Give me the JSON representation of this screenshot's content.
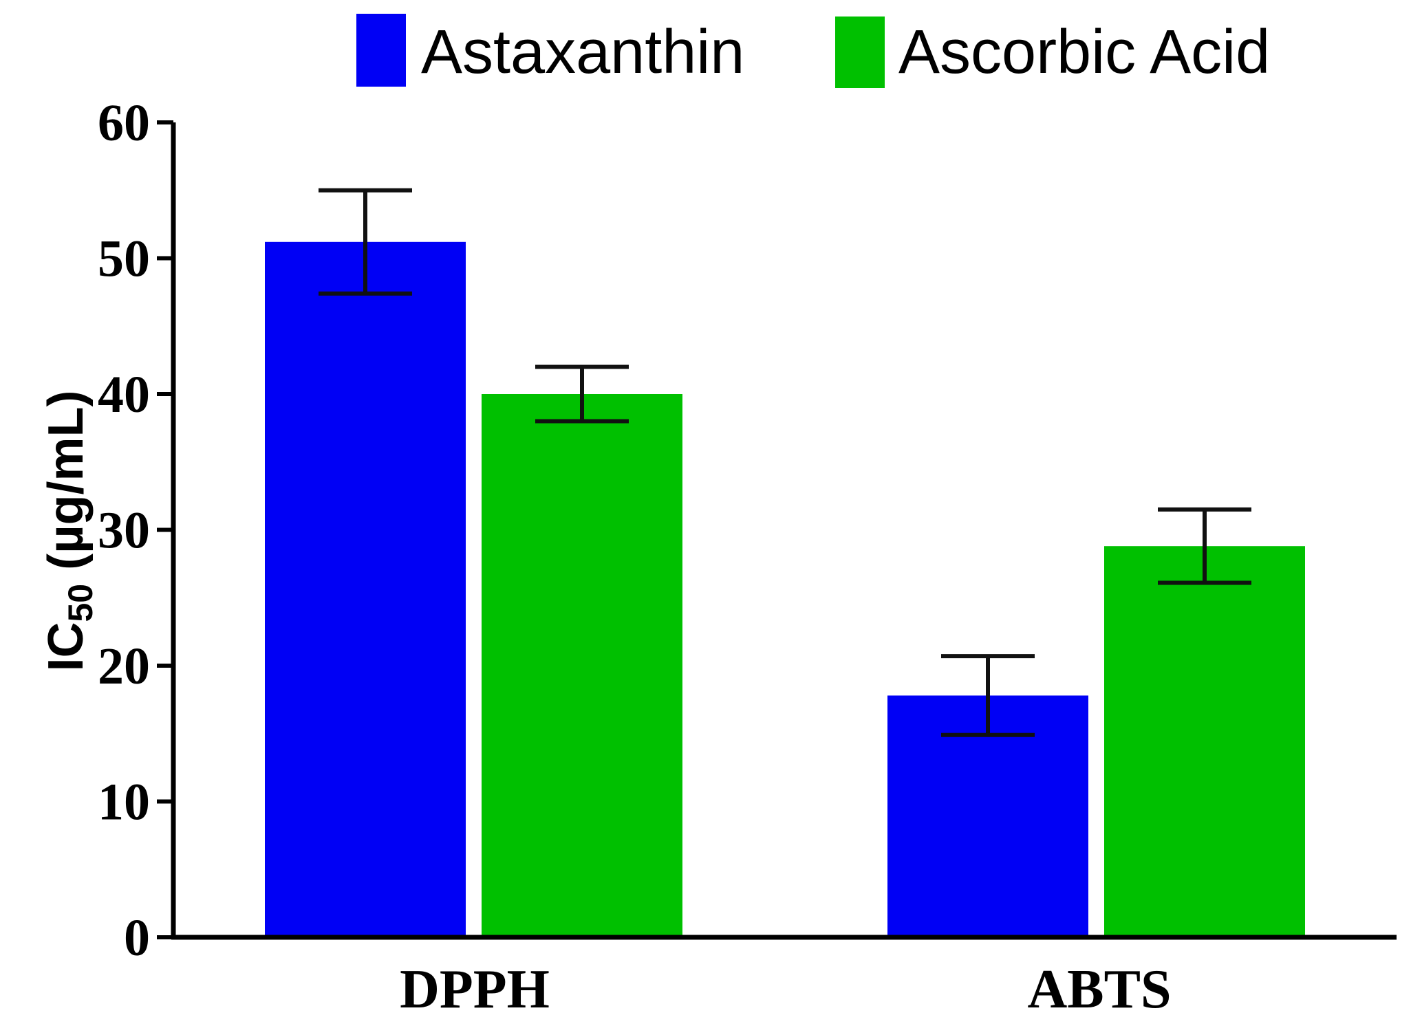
{
  "chart_data": {
    "type": "bar",
    "title": "",
    "categories": [
      "DPPH",
      "ABTS"
    ],
    "series": [
      {
        "name": "Astaxanthin",
        "color": "#0000f5",
        "values": [
          51.2,
          17.8
        ],
        "errors": [
          3.8,
          2.9
        ]
      },
      {
        "name": "Ascorbic Acid",
        "color": "#00c000",
        "values": [
          40.0,
          28.8
        ],
        "errors": [
          2.0,
          2.7
        ]
      }
    ],
    "xlabel": "",
    "ylabel_main": "IC",
    "ylabel_sub": "50",
    "ylabel_unit": " (µg/mL)",
    "ylim": [
      0,
      60
    ],
    "yticks": [
      "0",
      "10",
      "20",
      "30",
      "40",
      "50",
      "60"
    ],
    "grid": false,
    "legend_position": "top"
  }
}
